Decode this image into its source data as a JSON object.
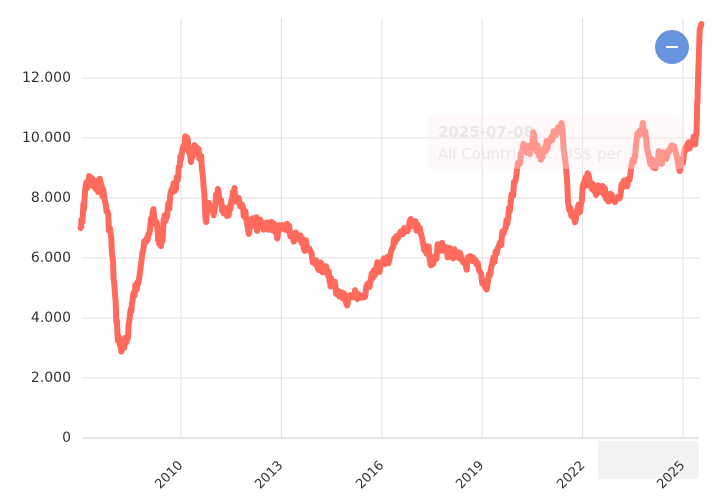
{
  "chart_data": {
    "type": "line",
    "title": "",
    "xlabel": "",
    "ylabel": "",
    "ylim": [
      0,
      14000
    ],
    "xlim": [
      2007.0,
      2025.55
    ],
    "grid": true,
    "legend": "none",
    "y_ticks": [
      "0",
      "2.000",
      "4.000",
      "6.000",
      "8.000",
      "10.000",
      "12.000"
    ],
    "y_tick_values": [
      0,
      2000,
      4000,
      6000,
      8000,
      10000,
      12000
    ],
    "x_ticks": [
      "2010",
      "2013",
      "2016",
      "2019",
      "2022",
      "2025"
    ],
    "x_tick_values": [
      2010,
      2013,
      2016,
      2019,
      2022,
      2025
    ],
    "line_color": "#ff6a5c",
    "series": [
      {
        "name": "All Countries",
        "x": [
          2007.0,
          2007.05,
          2007.15,
          2007.3,
          2007.45,
          2007.6,
          2007.75,
          2007.9,
          2008.0,
          2008.1,
          2008.2,
          2008.3,
          2008.4,
          2008.5,
          2008.6,
          2008.7,
          2008.85,
          2009.0,
          2009.15,
          2009.3,
          2009.4,
          2009.5,
          2009.6,
          2009.75,
          2009.9,
          2010.0,
          2010.15,
          2010.3,
          2010.45,
          2010.6,
          2010.75,
          2010.85,
          2011.0,
          2011.1,
          2011.25,
          2011.4,
          2011.55,
          2011.7,
          2011.85,
          2012.0,
          2012.15,
          2012.3,
          2012.5,
          2012.7,
          2012.85,
          2013.0,
          2013.2,
          2013.4,
          2013.6,
          2013.8,
          2014.0,
          2014.2,
          2014.4,
          2014.5,
          2014.7,
          2014.9,
          2015.1,
          2015.3,
          2015.5,
          2015.7,
          2015.9,
          2016.1,
          2016.3,
          2016.5,
          2016.7,
          2016.9,
          2017.1,
          2017.3,
          2017.5,
          2017.7,
          2017.9,
          2018.1,
          2018.3,
          2018.5,
          2018.7,
          2018.9,
          2019.1,
          2019.3,
          2019.5,
          2019.7,
          2019.85,
          2020.0,
          2020.2,
          2020.4,
          2020.55,
          2020.7,
          2020.85,
          2021.0,
          2021.2,
          2021.4,
          2021.6,
          2021.8,
          2021.95,
          2022.1,
          2022.25,
          2022.4,
          2022.6,
          2022.8,
          2023.0,
          2023.2,
          2023.4,
          2023.6,
          2023.8,
          2024.0,
          2024.15,
          2024.3,
          2024.5,
          2024.7,
          2024.9,
          2025.1,
          2025.3,
          2025.4,
          2025.45,
          2025.5,
          2025.55
        ],
        "values": [
          7000,
          7200,
          8400,
          8600,
          8300,
          8500,
          7800,
          6800,
          5200,
          3500,
          3000,
          3000,
          3400,
          4300,
          4800,
          5200,
          6200,
          6600,
          7500,
          6900,
          6400,
          7200,
          7600,
          8200,
          8600,
          9300,
          10000,
          9200,
          9700,
          9400,
          7200,
          7700,
          7600,
          8300,
          7700,
          7500,
          8200,
          8000,
          7700,
          7000,
          7200,
          7100,
          7000,
          7200,
          6800,
          7000,
          6900,
          6700,
          6500,
          6300,
          5800,
          5800,
          5400,
          5200,
          4900,
          4600,
          4700,
          4800,
          4700,
          5500,
          5700,
          5800,
          6300,
          6700,
          6900,
          7100,
          6900,
          6400,
          5900,
          6300,
          6300,
          6100,
          6000,
          5800,
          5900,
          5600,
          5000,
          5800,
          6400,
          7000,
          7800,
          8600,
          9600,
          9500,
          10100,
          9400,
          9600,
          9900,
          10100,
          10300,
          7600,
          7300,
          7800,
          8700,
          8400,
          8100,
          8400,
          7900,
          8000,
          8400,
          8600,
          9800,
          10500,
          9300,
          9100,
          9400,
          9300,
          9700,
          8900,
          9600,
          9800,
          10100,
          12000,
          13600,
          13800
        ],
        "last_point": {
          "date": "2025-07-08",
          "value_label_visible": false
        }
      }
    ]
  },
  "tooltip": {
    "date": "2025-07-08",
    "text": "All Countries: ... US$ per ..."
  },
  "controls": {
    "zoom_button_label": "−"
  },
  "colors": {
    "line": "#ff6a5c",
    "grid": "#e0e0e0",
    "axis": "#cccccc",
    "zoom_button": "#6794dc",
    "text": "#333333"
  }
}
